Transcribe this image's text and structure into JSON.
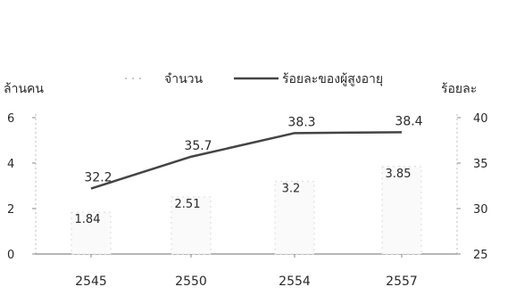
{
  "chart_data": {
    "type": "bar",
    "title": "",
    "categories": [
      "2545",
      "2550",
      "2554",
      "2557"
    ],
    "left_axis": {
      "label": "ล้านคน",
      "ylim": [
        0,
        6
      ],
      "ticks": [
        "0",
        "2",
        "4",
        "6"
      ]
    },
    "right_axis": {
      "label": "ร้อยละ",
      "ylim": [
        25,
        40
      ],
      "ticks": [
        "25",
        "30",
        "35",
        "40"
      ]
    },
    "legend": {
      "placement": "top",
      "items": [
        "จำนวน",
        "ร้อยละของผู้สูงอายุ"
      ]
    },
    "series": [
      {
        "name": "จำนวน",
        "type": "bar",
        "axis": "left",
        "values": [
          1.84,
          2.51,
          3.2,
          3.85
        ],
        "labels": [
          "1.84",
          "2.51",
          "3.2",
          "3.85"
        ],
        "color": "#d9d9d9"
      },
      {
        "name": "ร้อยละของผู้สูงอายุ",
        "type": "line",
        "axis": "right",
        "values": [
          32.2,
          35.7,
          38.3,
          38.4
        ],
        "labels": [
          "32.2",
          "35.7",
          "38.3",
          "38.4"
        ],
        "color": "#444444"
      }
    ],
    "grid": false
  }
}
